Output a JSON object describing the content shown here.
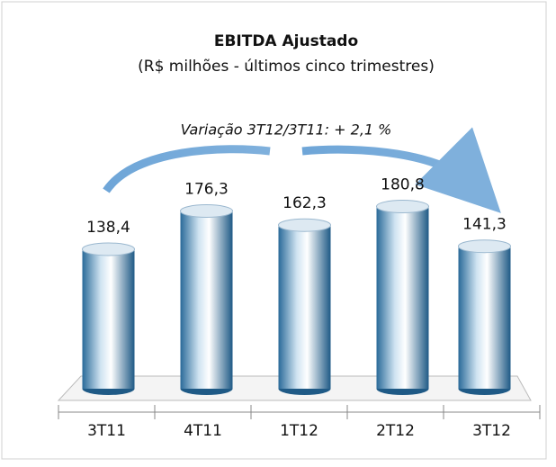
{
  "chart_data": {
    "type": "bar",
    "title": "EBITDA Ajustado",
    "subtitle": "(R$ milhões - últimos cinco trimestres)",
    "annotation": "Variação 3T12/3T11: + 2,1 %",
    "categories": [
      "3T11",
      "4T11",
      "1T12",
      "2T12",
      "3T12"
    ],
    "values": [
      138.4,
      176.3,
      162.3,
      180.8,
      141.3
    ],
    "value_labels": [
      "138,4",
      "176,3",
      "162,3",
      "180,8",
      "141,3"
    ],
    "color": "#2f6f9f",
    "ylim": [
      0,
      200
    ]
  }
}
